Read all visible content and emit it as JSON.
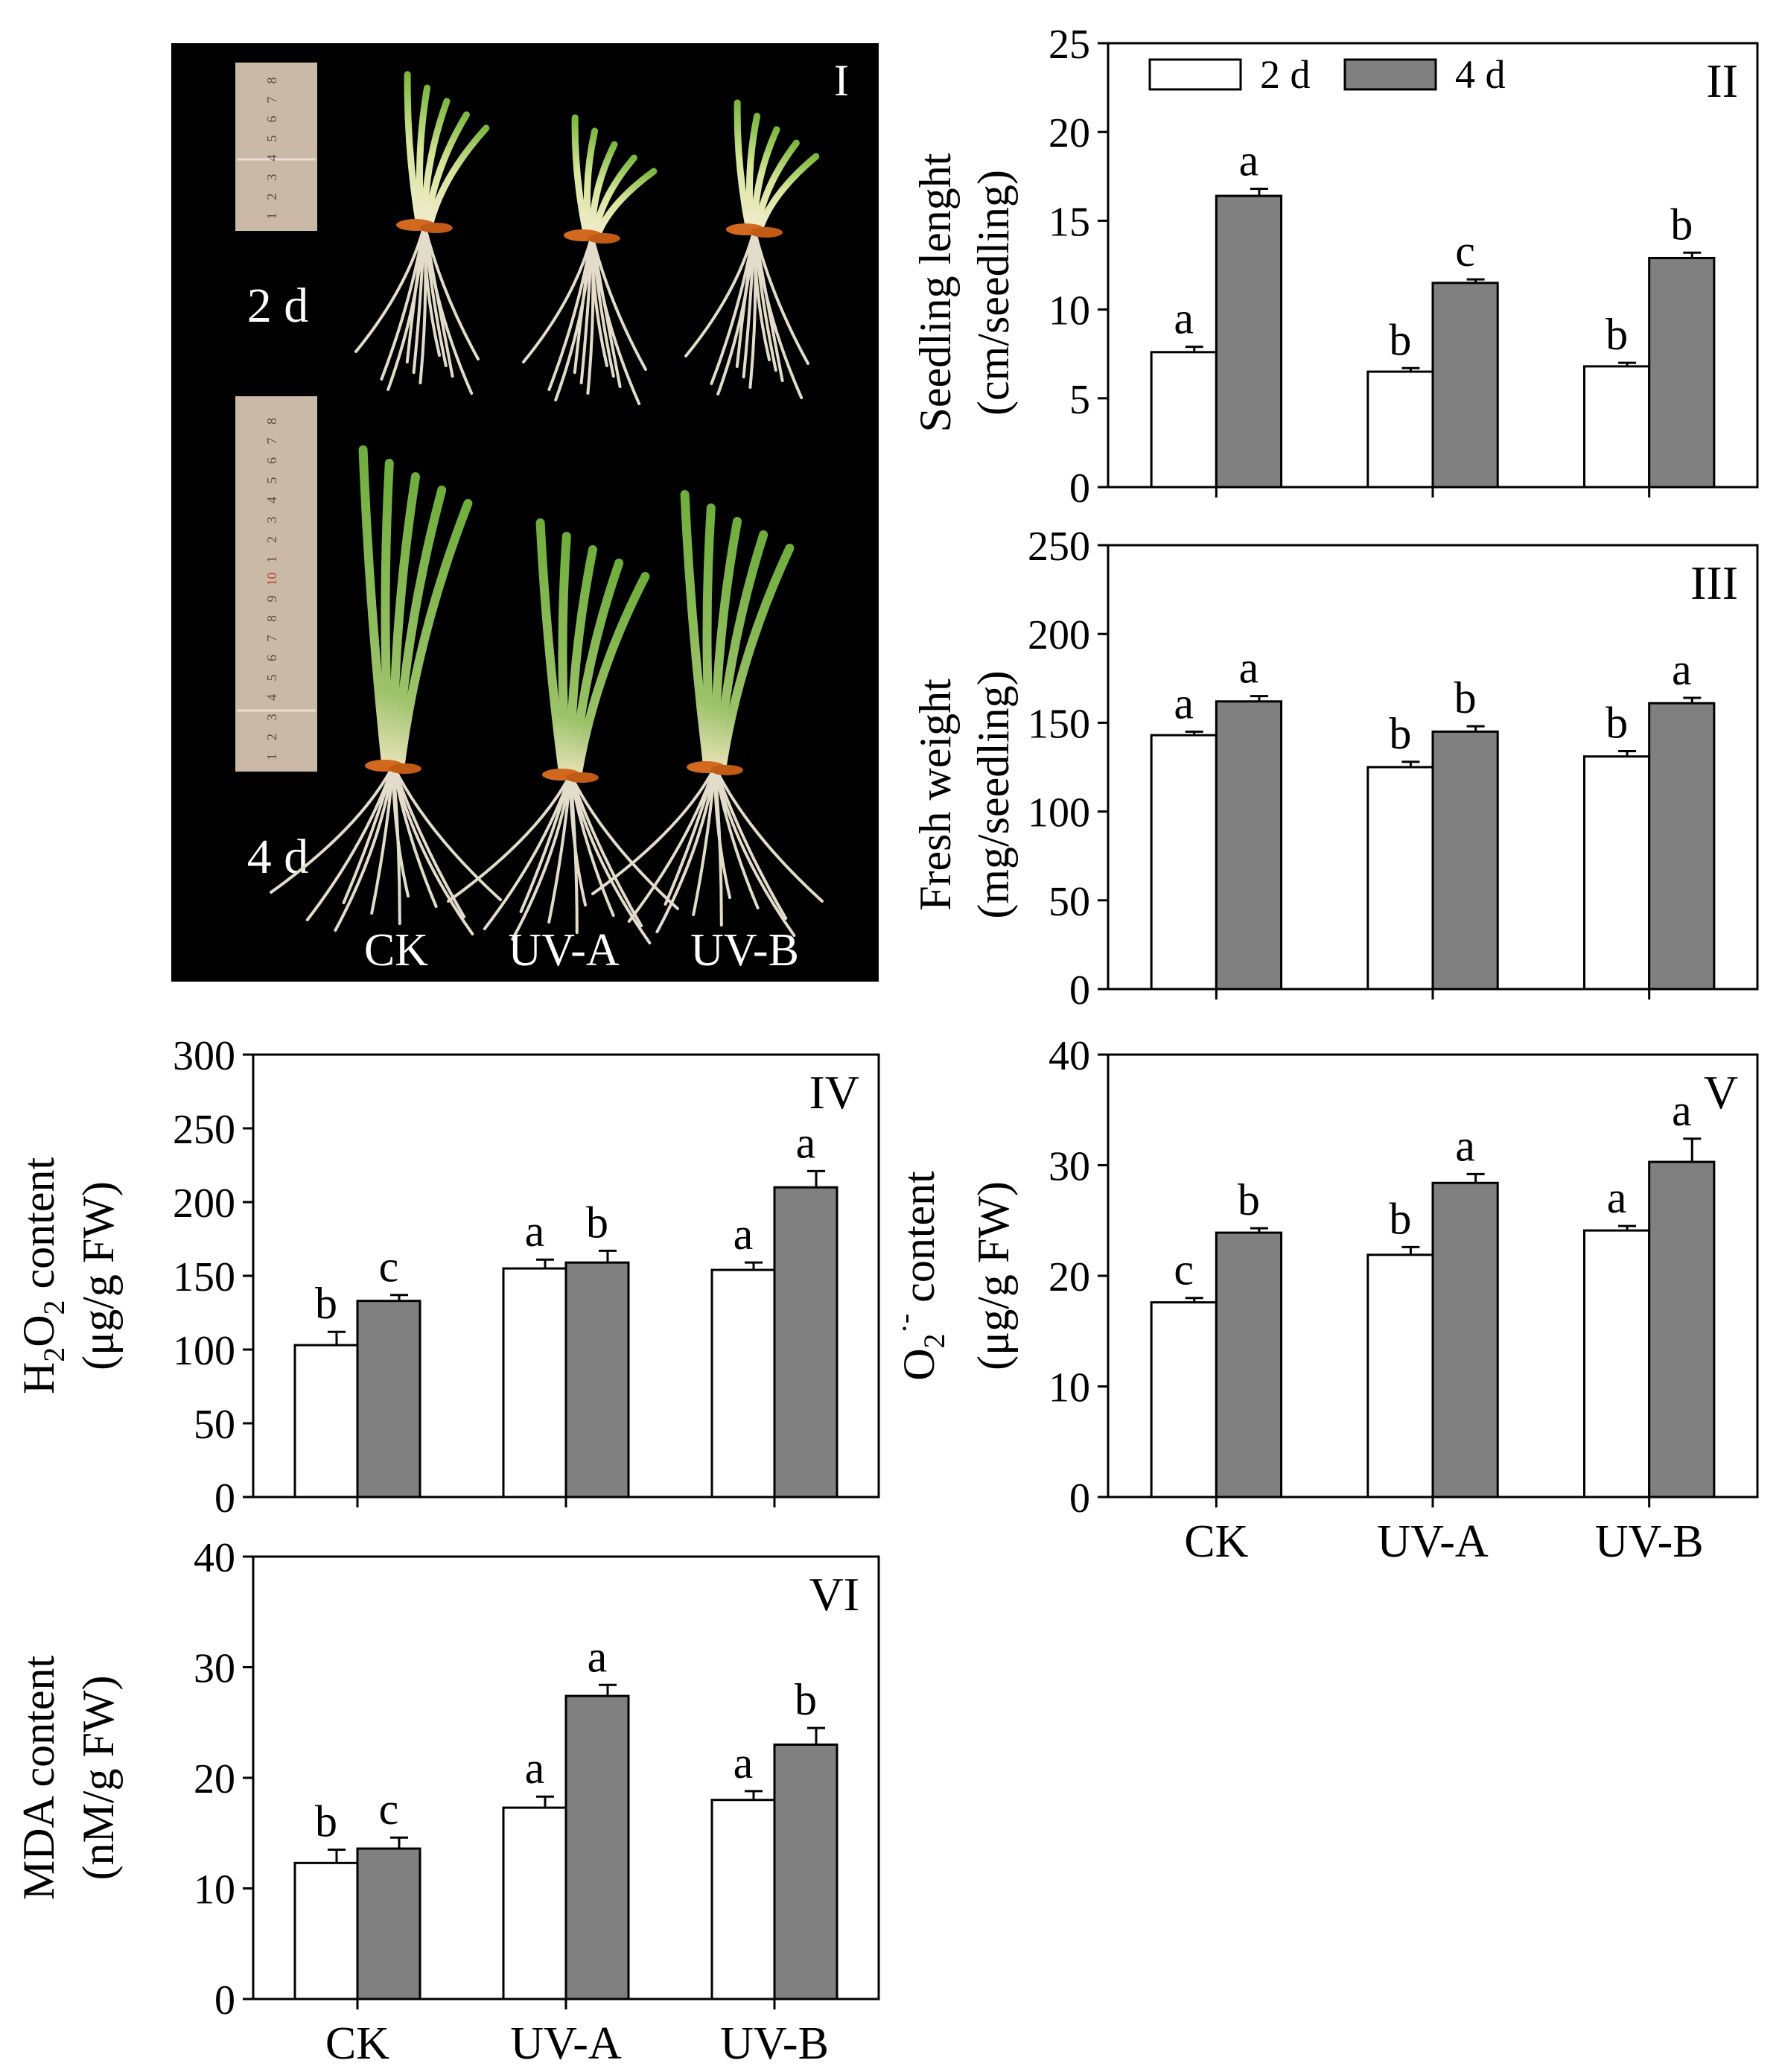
{
  "photo_panel": {
    "label": "I",
    "row_labels": [
      "2 d",
      "4 d"
    ],
    "column_labels": [
      "CK",
      "UV-A",
      "UV-B"
    ],
    "ruler_short_numbers": [
      "1",
      "2",
      "3",
      "4",
      "5",
      "6",
      "7",
      "8"
    ],
    "ruler_long_numbers": [
      "1",
      "2",
      "3",
      "4",
      "5",
      "6",
      "7",
      "8",
      "9",
      "10",
      "1",
      "2",
      "3",
      "4",
      "5",
      "6",
      "7",
      "8"
    ],
    "colors": {
      "background": "#000000",
      "leaf": "#5f9e34",
      "root": "#e3dccb",
      "seed": "#d2691e",
      "ruler": "#c9b9a6"
    }
  },
  "legend": {
    "entries": [
      "2 d",
      "4 d"
    ],
    "fill_2d": "#ffffff",
    "fill_4d": "#808080"
  },
  "chart_data": [
    {
      "id": "II",
      "type": "bar",
      "panel_label": "II",
      "categories": [
        "CK",
        "UV-A",
        "UV-B"
      ],
      "show_category_labels": false,
      "ylabel_lines": [
        "Seedling lenght",
        "(cm/seedling)"
      ],
      "ylim": [
        0,
        25
      ],
      "yticks": [
        0,
        5,
        10,
        15,
        20,
        25
      ],
      "series": [
        {
          "name": "2 d",
          "values": [
            7.6,
            6.5,
            6.8
          ],
          "errors": [
            0.3,
            0.2,
            0.2
          ],
          "letters": [
            "a",
            "b",
            "b"
          ]
        },
        {
          "name": "4 d",
          "values": [
            16.4,
            11.5,
            12.9
          ],
          "errors": [
            0.4,
            0.2,
            0.3
          ],
          "letters": [
            "a",
            "c",
            "b"
          ]
        }
      ]
    },
    {
      "id": "III",
      "type": "bar",
      "panel_label": "III",
      "categories": [
        "CK",
        "UV-A",
        "UV-B"
      ],
      "show_category_labels": false,
      "ylabel_lines": [
        "Fresh weight",
        "(mg/seedling)"
      ],
      "ylim": [
        0,
        250
      ],
      "yticks": [
        0,
        50,
        100,
        150,
        200,
        250
      ],
      "series": [
        {
          "name": "2 d",
          "values": [
            143,
            125,
            131
          ],
          "errors": [
            2,
            3,
            3
          ],
          "letters": [
            "a",
            "b",
            "b"
          ]
        },
        {
          "name": "4 d",
          "values": [
            162,
            145,
            161
          ],
          "errors": [
            3,
            3,
            3
          ],
          "letters": [
            "a",
            "b",
            "a"
          ]
        }
      ]
    },
    {
      "id": "IV",
      "type": "bar",
      "panel_label": "IV",
      "categories": [
        "CK",
        "UV-A",
        "UV-B"
      ],
      "show_category_labels": false,
      "ylabel_lines": [
        "H2O2 content",
        "(μg/g FW)"
      ],
      "ylabel_rich": [
        {
          "t": "H",
          "s": ""
        },
        {
          "t": "2",
          "s": "sub"
        },
        {
          "t": "O",
          "s": ""
        },
        {
          "t": "2",
          "s": "sub"
        },
        {
          "t": " content",
          "s": ""
        }
      ],
      "ylim": [
        0,
        300
      ],
      "yticks": [
        0,
        50,
        100,
        150,
        200,
        250,
        300
      ],
      "series": [
        {
          "name": "2 d",
          "values": [
            103,
            155,
            154
          ],
          "errors": [
            9,
            6,
            5
          ],
          "letters": [
            "b",
            "a",
            "a"
          ]
        },
        {
          "name": "4 d",
          "values": [
            133,
            159,
            210
          ],
          "errors": [
            4,
            8,
            11
          ],
          "letters": [
            "c",
            "b",
            "a"
          ]
        }
      ]
    },
    {
      "id": "V",
      "type": "bar",
      "panel_label": "V",
      "categories": [
        "CK",
        "UV-A",
        "UV-B"
      ],
      "show_category_labels": true,
      "ylabel_lines": [
        "O2·- content",
        "(μg/g FW)"
      ],
      "ylabel_rich": [
        {
          "t": "O",
          "s": ""
        },
        {
          "t": "2",
          "s": "sub"
        },
        {
          "t": "·-",
          "s": "sup"
        },
        {
          "t": " content",
          "s": ""
        }
      ],
      "ylim": [
        0,
        40
      ],
      "yticks": [
        0,
        10,
        20,
        30,
        40
      ],
      "series": [
        {
          "name": "2 d",
          "values": [
            17.6,
            21.9,
            24.1
          ],
          "errors": [
            0.4,
            0.7,
            0.4
          ],
          "letters": [
            "c",
            "b",
            "a"
          ]
        },
        {
          "name": "4 d",
          "values": [
            23.9,
            28.4,
            30.3
          ],
          "errors": [
            0.4,
            0.8,
            2.1
          ],
          "letters": [
            "b",
            "a",
            "a"
          ]
        }
      ]
    },
    {
      "id": "VI",
      "type": "bar",
      "panel_label": "VI",
      "categories": [
        "CK",
        "UV-A",
        "UV-B"
      ],
      "show_category_labels": true,
      "ylabel_lines": [
        "MDA content",
        "(nM/g FW)"
      ],
      "ylim": [
        0,
        40
      ],
      "yticks": [
        0,
        10,
        20,
        30,
        40
      ],
      "series": [
        {
          "name": "2 d",
          "values": [
            12.3,
            17.3,
            18.0
          ],
          "errors": [
            1.2,
            1.0,
            0.8
          ],
          "letters": [
            "b",
            "a",
            "a"
          ]
        },
        {
          "name": "4 d",
          "values": [
            13.6,
            27.4,
            23.0
          ],
          "errors": [
            1.0,
            1.0,
            1.5
          ],
          "letters": [
            "c",
            "a",
            "b"
          ]
        }
      ]
    }
  ]
}
